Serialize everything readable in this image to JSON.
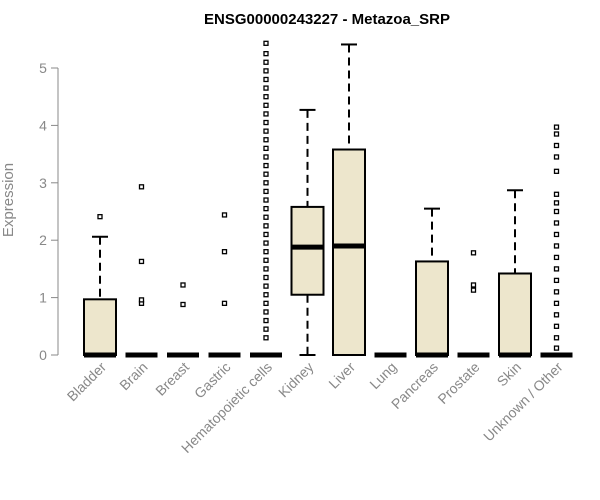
{
  "chart_data": {
    "type": "boxplot",
    "title": "ENSG00000243227 - Metazoa_SRP",
    "xlabel": "",
    "ylabel": "Expression",
    "ylim": [
      0,
      5.5
    ],
    "yticks": [
      0,
      1,
      2,
      3,
      4,
      5
    ],
    "grid": false,
    "box_fill": "#ede6cc",
    "box_stroke": "#000000",
    "categories": [
      "Bladder",
      "Brain",
      "Breast",
      "Gastric",
      "Hematopoietic cells",
      "Kidney",
      "Liver",
      "Lung",
      "Pancreas",
      "Prostate",
      "Skin",
      "Unknown / Other"
    ],
    "boxes": [
      {
        "category": "Bladder",
        "min": 0,
        "q1": 0,
        "median": 0,
        "q3": 0.97,
        "max": 2.06,
        "outliers": [
          2.41
        ]
      },
      {
        "category": "Brain",
        "min": 0,
        "q1": 0,
        "median": 0,
        "q3": 0,
        "max": 0,
        "outliers": [
          0.9,
          0.96,
          1.63,
          2.93
        ]
      },
      {
        "category": "Breast",
        "min": 0,
        "q1": 0,
        "median": 0,
        "q3": 0,
        "max": 0,
        "outliers": [
          0.88,
          1.22
        ]
      },
      {
        "category": "Gastric",
        "min": 0,
        "q1": 0,
        "median": 0,
        "q3": 0,
        "max": 0,
        "outliers": [
          0.9,
          1.8,
          2.44
        ]
      },
      {
        "category": "Hematopoietic cells",
        "min": 0,
        "q1": 0,
        "median": 0,
        "q3": 0,
        "max": 0,
        "outliers": [
          0.3,
          0.45,
          0.6,
          0.75,
          0.9,
          1.05,
          1.2,
          1.35,
          1.5,
          1.65,
          1.8,
          1.95,
          2.1,
          2.25,
          2.4,
          2.55,
          2.7,
          2.85,
          3.0,
          3.15,
          3.3,
          3.45,
          3.6,
          3.75,
          3.9,
          4.05,
          4.2,
          4.35,
          4.5,
          4.65,
          4.8,
          4.95,
          5.1,
          5.25,
          5.43
        ]
      },
      {
        "category": "Kidney",
        "min": 0,
        "q1": 1.05,
        "median": 1.88,
        "q3": 2.58,
        "max": 4.27,
        "outliers": []
      },
      {
        "category": "Liver",
        "min": 0,
        "q1": 0,
        "median": 1.9,
        "q3": 3.58,
        "max": 5.41,
        "outliers": []
      },
      {
        "category": "Lung",
        "min": 0,
        "q1": 0,
        "median": 0,
        "q3": 0,
        "max": 0,
        "outliers": []
      },
      {
        "category": "Pancreas",
        "min": 0,
        "q1": 0,
        "median": 0,
        "q3": 1.63,
        "max": 2.55,
        "outliers": []
      },
      {
        "category": "Prostate",
        "min": 0,
        "q1": 0,
        "median": 0,
        "q3": 0,
        "max": 0,
        "outliers": [
          1.13,
          1.22,
          1.78
        ]
      },
      {
        "category": "Skin",
        "min": 0,
        "q1": 0,
        "median": 0,
        "q3": 1.42,
        "max": 2.87,
        "outliers": []
      },
      {
        "category": "Unknown / Other",
        "min": 0,
        "q1": 0,
        "median": 0,
        "q3": 0,
        "max": 0,
        "outliers": [
          0.12,
          0.3,
          0.5,
          0.7,
          0.9,
          1.1,
          1.3,
          1.5,
          1.7,
          1.9,
          2.1,
          2.3,
          2.5,
          2.65,
          2.8,
          3.2,
          3.45,
          3.65,
          3.85,
          3.97
        ]
      }
    ]
  }
}
